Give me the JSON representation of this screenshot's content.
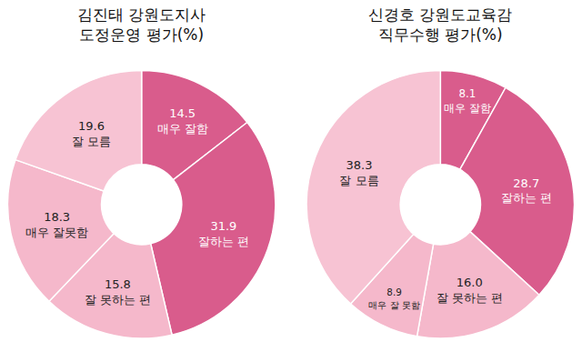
{
  "chart_data": [
    {
      "type": "pie",
      "title": "김진태 강원도지사\n도정운영 평가(%)",
      "categories": [
        "매우 잘함",
        "잘하는 편",
        "잘 못하는 편",
        "매우 잘못함",
        "잘 모름"
      ],
      "values": [
        14.5,
        31.9,
        15.8,
        18.3,
        19.6
      ],
      "value_labels": [
        "14.5",
        "31.9",
        "15.8",
        "18.3",
        "19.6"
      ],
      "colors": [
        "#d95c8c",
        "#d95c8c",
        "#f5b8cb",
        "#f5b8cb",
        "#f7c3d3"
      ],
      "data_labels": true
    },
    {
      "type": "pie",
      "title": "신경호 강원도교육감\n직무수행 평가(%)",
      "categories": [
        "매우 잘함",
        "잘하는 편",
        "잘 못하는 편",
        "매우 잘 못함",
        "잘 모름"
      ],
      "values": [
        8.1,
        28.7,
        16.0,
        8.9,
        38.3
      ],
      "value_labels": [
        "8.1",
        "28.7",
        "16.0",
        "8.9",
        "38.3"
      ],
      "colors": [
        "#d95c8c",
        "#d95c8c",
        "#f5b8cb",
        "#f5b8cb",
        "#f7c3d3"
      ],
      "data_labels": true
    }
  ]
}
